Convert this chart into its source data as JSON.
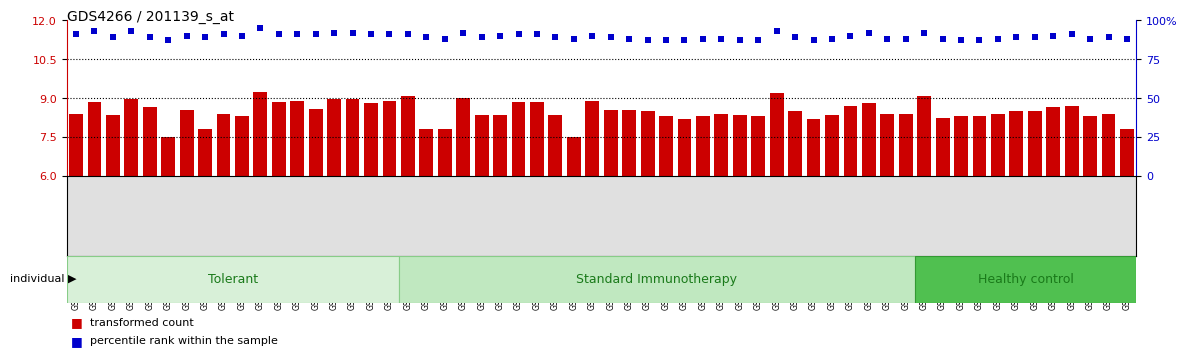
{
  "title": "GDS4266 / 201139_s_at",
  "samples": [
    "GSM553595",
    "GSM553596",
    "GSM553597",
    "GSM553598",
    "GSM553599",
    "GSM553600",
    "GSM553601",
    "GSM553602",
    "GSM553603",
    "GSM553604",
    "GSM553605",
    "GSM553606",
    "GSM553607",
    "GSM553608",
    "GSM553609",
    "GSM553610",
    "GSM553611",
    "GSM553612",
    "GSM553613",
    "GSM553614",
    "GSM553615",
    "GSM553616",
    "GSM553617",
    "GSM553618",
    "GSM553619",
    "GSM553620",
    "GSM553621",
    "GSM553622",
    "GSM553623",
    "GSM553624",
    "GSM553625",
    "GSM553626",
    "GSM553627",
    "GSM553628",
    "GSM553629",
    "GSM553630",
    "GSM553631",
    "GSM553632",
    "GSM553633",
    "GSM553634",
    "GSM553635",
    "GSM553636",
    "GSM553637",
    "GSM553638",
    "GSM553639",
    "GSM553640",
    "GSM553641",
    "GSM553642",
    "GSM553643",
    "GSM553644",
    "GSM553645",
    "GSM553646",
    "GSM553647",
    "GSM553648",
    "GSM553649",
    "GSM553650",
    "GSM553651",
    "GSM553652"
  ],
  "bar_values": [
    8.4,
    8.85,
    8.35,
    8.95,
    8.65,
    7.5,
    8.55,
    7.8,
    8.4,
    8.3,
    9.25,
    8.85,
    8.9,
    8.6,
    8.95,
    8.95,
    8.8,
    8.9,
    9.1,
    7.8,
    7.8,
    9.0,
    8.35,
    8.35,
    8.85,
    8.85,
    8.35,
    7.5,
    8.9,
    8.55,
    8.55,
    8.5,
    8.3,
    8.2,
    8.3,
    8.4,
    8.35,
    8.3,
    9.2,
    8.5,
    8.2,
    8.35,
    8.7,
    8.8,
    8.4,
    8.4,
    9.1,
    8.25,
    8.3,
    8.3,
    8.4,
    8.5,
    8.5,
    8.65,
    8.7,
    8.3,
    8.4,
    7.8
  ],
  "percentile_values": [
    91,
    93,
    89,
    93,
    89,
    87,
    90,
    89,
    91,
    90,
    95,
    91,
    91,
    91,
    92,
    92,
    91,
    91,
    91,
    89,
    88,
    92,
    89,
    90,
    91,
    91,
    89,
    88,
    90,
    89,
    88,
    87,
    87,
    87,
    88,
    88,
    87,
    87,
    93,
    89,
    87,
    88,
    90,
    92,
    88,
    88,
    92,
    88,
    87,
    87,
    88,
    89,
    89,
    90,
    91,
    88,
    89,
    88
  ],
  "groups": [
    {
      "label": "Tolerant",
      "start": 0,
      "end": 18,
      "color": "#d8f0d8",
      "border": "#88cc88"
    },
    {
      "label": "Standard Immunotherapy",
      "start": 18,
      "end": 46,
      "color": "#c0e8c0",
      "border": "#88cc88"
    },
    {
      "label": "Healthy control",
      "start": 46,
      "end": 58,
      "color": "#50c050",
      "border": "#339933"
    }
  ],
  "bar_color": "#cc0000",
  "dot_color": "#0000cc",
  "ylim_left": [
    6,
    12
  ],
  "ylim_right": [
    0,
    100
  ],
  "yticks_left": [
    6,
    7.5,
    9,
    10.5,
    12
  ],
  "yticks_right": [
    0,
    25,
    50,
    75,
    100
  ],
  "hlines": [
    7.5,
    9.0,
    10.5
  ],
  "title_fontsize": 10,
  "group_label_fontsize": 9,
  "legend_fontsize": 8,
  "yaxis_left_color": "#cc0000",
  "yaxis_right_color": "#0000cc"
}
